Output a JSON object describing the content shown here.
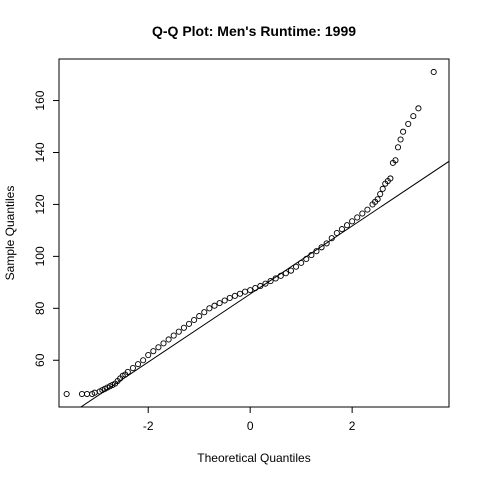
{
  "chart_data": {
    "type": "scatter",
    "title": "Q-Q Plot: Men's Runtime:  1999",
    "xlabel": "Theoretical Quantiles",
    "ylabel": "Sample Quantiles",
    "xlim": [
      -3.75,
      3.9
    ],
    "ylim": [
      42,
      176
    ],
    "x_ticks": [
      -2,
      0,
      2
    ],
    "x_tick_labels": [
      "-2",
      "0",
      "2"
    ],
    "y_ticks": [
      60,
      80,
      100,
      120,
      140,
      160
    ],
    "y_tick_labels": [
      "60",
      "80",
      "100",
      "120",
      "140",
      "160"
    ],
    "grid": false,
    "legend": "none",
    "reference_line": {
      "intercept": 85.5,
      "slope": 13.1
    },
    "series": [
      {
        "marker": "open-circle",
        "x": [
          -3.6,
          -3.3,
          -3.2,
          -3.1,
          -3.05,
          -2.95,
          -2.9,
          -2.85,
          -2.8,
          -2.75,
          -2.7,
          -2.65,
          -2.6,
          -2.55,
          -2.5,
          -2.45,
          -2.4,
          -2.3,
          -2.2,
          -2.1,
          -2.0,
          -1.9,
          -1.8,
          -1.7,
          -1.6,
          -1.5,
          -1.4,
          -1.3,
          -1.2,
          -1.1,
          -1.0,
          -0.9,
          -0.8,
          -0.7,
          -0.6,
          -0.5,
          -0.4,
          -0.3,
          -0.2,
          -0.1,
          0.0,
          0.1,
          0.2,
          0.3,
          0.4,
          0.5,
          0.6,
          0.7,
          0.8,
          0.9,
          1.0,
          1.1,
          1.2,
          1.3,
          1.4,
          1.5,
          1.6,
          1.7,
          1.8,
          1.9,
          2.0,
          2.1,
          2.2,
          2.3,
          2.4,
          2.45,
          2.5,
          2.55,
          2.6,
          2.65,
          2.7,
          2.75,
          2.8,
          2.85,
          2.9,
          2.95,
          3.0,
          3.1,
          3.2,
          3.3,
          3.6
        ],
        "y": [
          47,
          47,
          47,
          47,
          47.5,
          48,
          48.5,
          49,
          49.5,
          50,
          50.5,
          51,
          52,
          53,
          54,
          54.5,
          55.5,
          57,
          58.5,
          60,
          62,
          63.5,
          65,
          66.5,
          68,
          69.5,
          71,
          72.5,
          74,
          75.5,
          77,
          78.5,
          80,
          81,
          82,
          83,
          84,
          84.8,
          85.6,
          86.4,
          87,
          87.8,
          88.6,
          89.5,
          90.5,
          91.5,
          92.5,
          93.5,
          94.5,
          96,
          97.5,
          99,
          100.5,
          102,
          103.5,
          105,
          107,
          109,
          110.5,
          112,
          113.5,
          115,
          116.5,
          118,
          120,
          121,
          122,
          124,
          126,
          128,
          129,
          130,
          136,
          137,
          142,
          145,
          148,
          151,
          154,
          157,
          171
        ]
      }
    ]
  }
}
